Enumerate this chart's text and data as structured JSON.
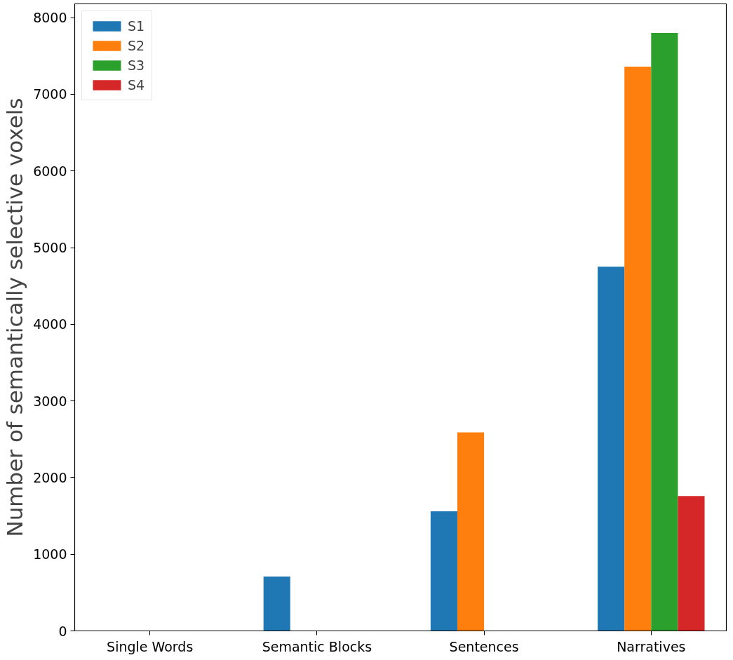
{
  "chart_data": {
    "type": "bar",
    "ylabel": "Number of semantically selective voxels",
    "categories": [
      "Single Words",
      "Semantic Blocks",
      "Sentences",
      "Narratives"
    ],
    "series": [
      {
        "name": "S1",
        "color": "#1f77b4",
        "values": [
          0,
          710,
          1560,
          4750
        ]
      },
      {
        "name": "S2",
        "color": "#ff7f0e",
        "values": [
          0,
          0,
          2590,
          7360
        ]
      },
      {
        "name": "S3",
        "color": "#2ca02c",
        "values": [
          0,
          0,
          0,
          7800
        ]
      },
      {
        "name": "S4",
        "color": "#d62728",
        "values": [
          0,
          0,
          0,
          1760
        ]
      }
    ],
    "ylim": [
      0,
      8180
    ],
    "yticks": [
      0,
      1000,
      2000,
      3000,
      4000,
      5000,
      6000,
      7000,
      8000
    ],
    "grid": false,
    "legend": "top left"
  }
}
